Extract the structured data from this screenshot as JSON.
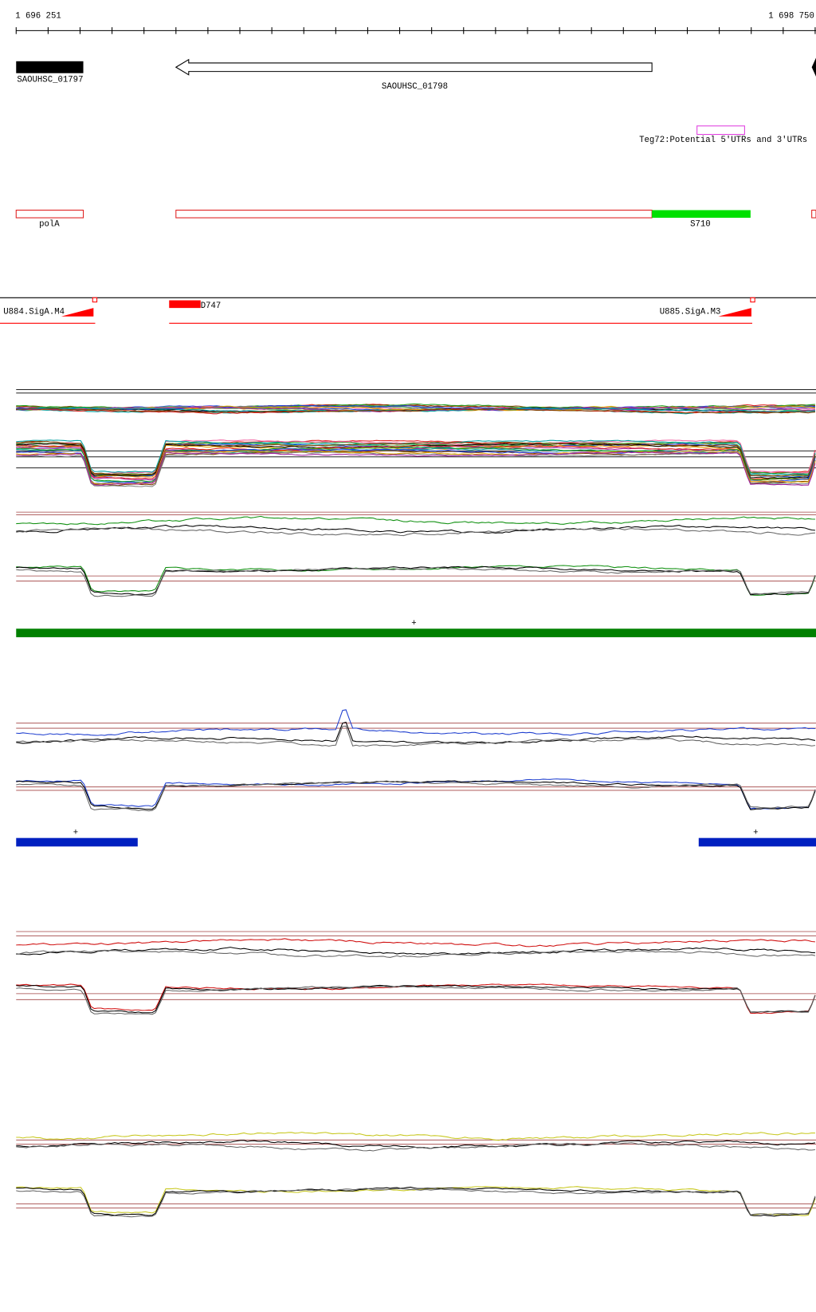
{
  "ruler": {
    "start": "1 696 251",
    "end": "1 698 750"
  },
  "genes": [
    {
      "label": "SAOUHSC_01797"
    },
    {
      "label": "SAOUHSC_01798"
    }
  ],
  "annotation": {
    "label": "Teg72:Potential 5'UTRs and 3'UTRs"
  },
  "features": [
    {
      "label": "polA"
    },
    {
      "label": "S710"
    }
  ],
  "promoters": [
    {
      "label": "U884.SigA.M4"
    },
    {
      "label": "D747"
    },
    {
      "label": "U885.SigA.M3"
    }
  ],
  "strand_marks": [
    "+",
    "+",
    "+"
  ]
}
